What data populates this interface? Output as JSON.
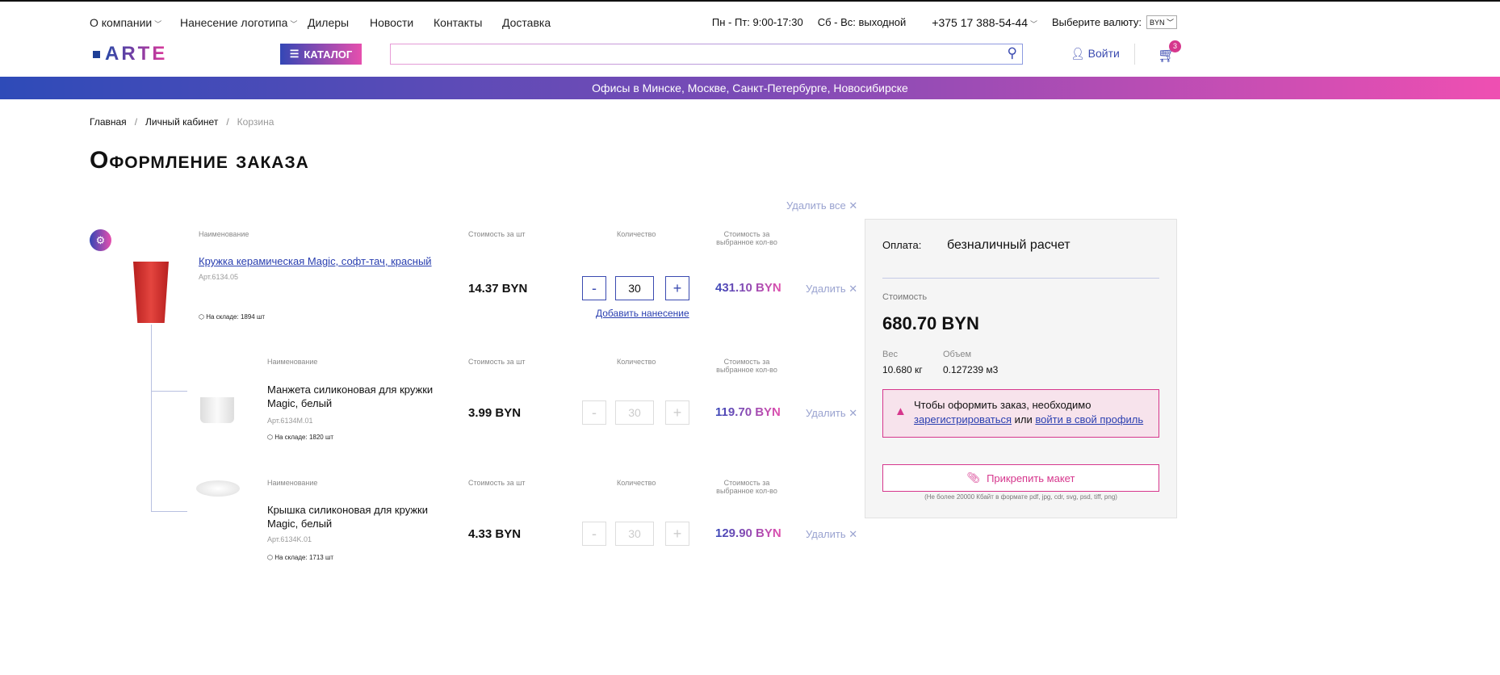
{
  "nav": {
    "items": [
      "О компании",
      "Нанесение логотипа",
      "Дилеры",
      "Новости",
      "Контакты",
      "Доставка"
    ],
    "hours_weekdays": "Пн - Пт: 9:00-17:30",
    "hours_weekend": "Сб - Вс: выходной",
    "phone": "+375 17 388-54-44",
    "currency_label": "Выберите валюту:",
    "currency": "BYN"
  },
  "header": {
    "logo": "ARTE",
    "catalog": "КАТАЛОГ",
    "search_placeholder": "",
    "login": "Войти",
    "cart_count": "3"
  },
  "banner": "Офисы в Минске, Москве, Санкт-Петербурге, Новосибирске",
  "breadcrumb": [
    "Главная",
    "Личный кабинет",
    "Корзина"
  ],
  "title": "Оформление заказа",
  "delete_all": "Удалить все",
  "columns": {
    "name": "Наименование",
    "unit_price": "Стоимость за шт",
    "qty": "Количество",
    "total": "Стоимость за выбранное кол-во"
  },
  "items": [
    {
      "name": "Кружка керамическая Magic, софт-тач, красный",
      "art": "Арт.6134.05",
      "stock": "На складе: 1894 шт",
      "price": "14.37 BYN",
      "qty": "30",
      "total": "431.10 BYN",
      "delete": "Удалить",
      "add_print": "Добавить нанесение"
    },
    {
      "name": "Манжета силиконовая для кружки Magic, белый",
      "art": "Арт.6134M.01",
      "stock": "На складе: 1820 шт",
      "price": "3.99 BYN",
      "qty": "30",
      "total": "119.70 BYN",
      "delete": "Удалить"
    },
    {
      "name": "Крышка силиконовая для кружки Magic, белый",
      "art": "Арт.6134K.01",
      "stock": "На складе: 1713 шт",
      "price": "4.33 BYN",
      "qty": "30",
      "total": "129.90 BYN",
      "delete": "Удалить"
    }
  ],
  "summary": {
    "payment_label": "Оплата:",
    "payment": "безналичный расчет",
    "cost_label": "Стоимость",
    "cost": "680.70 BYN",
    "weight_label": "Вес",
    "weight": "10.680 кг",
    "volume_label": "Объем",
    "volume": "0.127239 м3",
    "warning_text": "Чтобы оформить заказ, необходимо",
    "register": "зарегистрироваться",
    "or": "или",
    "login": "войти в свой профиль",
    "attach": "Прикрепить макет",
    "attach_note": "(Не более 20000 Кбайт в формате pdf, jpg, cdr, svg, psd, tiff, png)"
  }
}
